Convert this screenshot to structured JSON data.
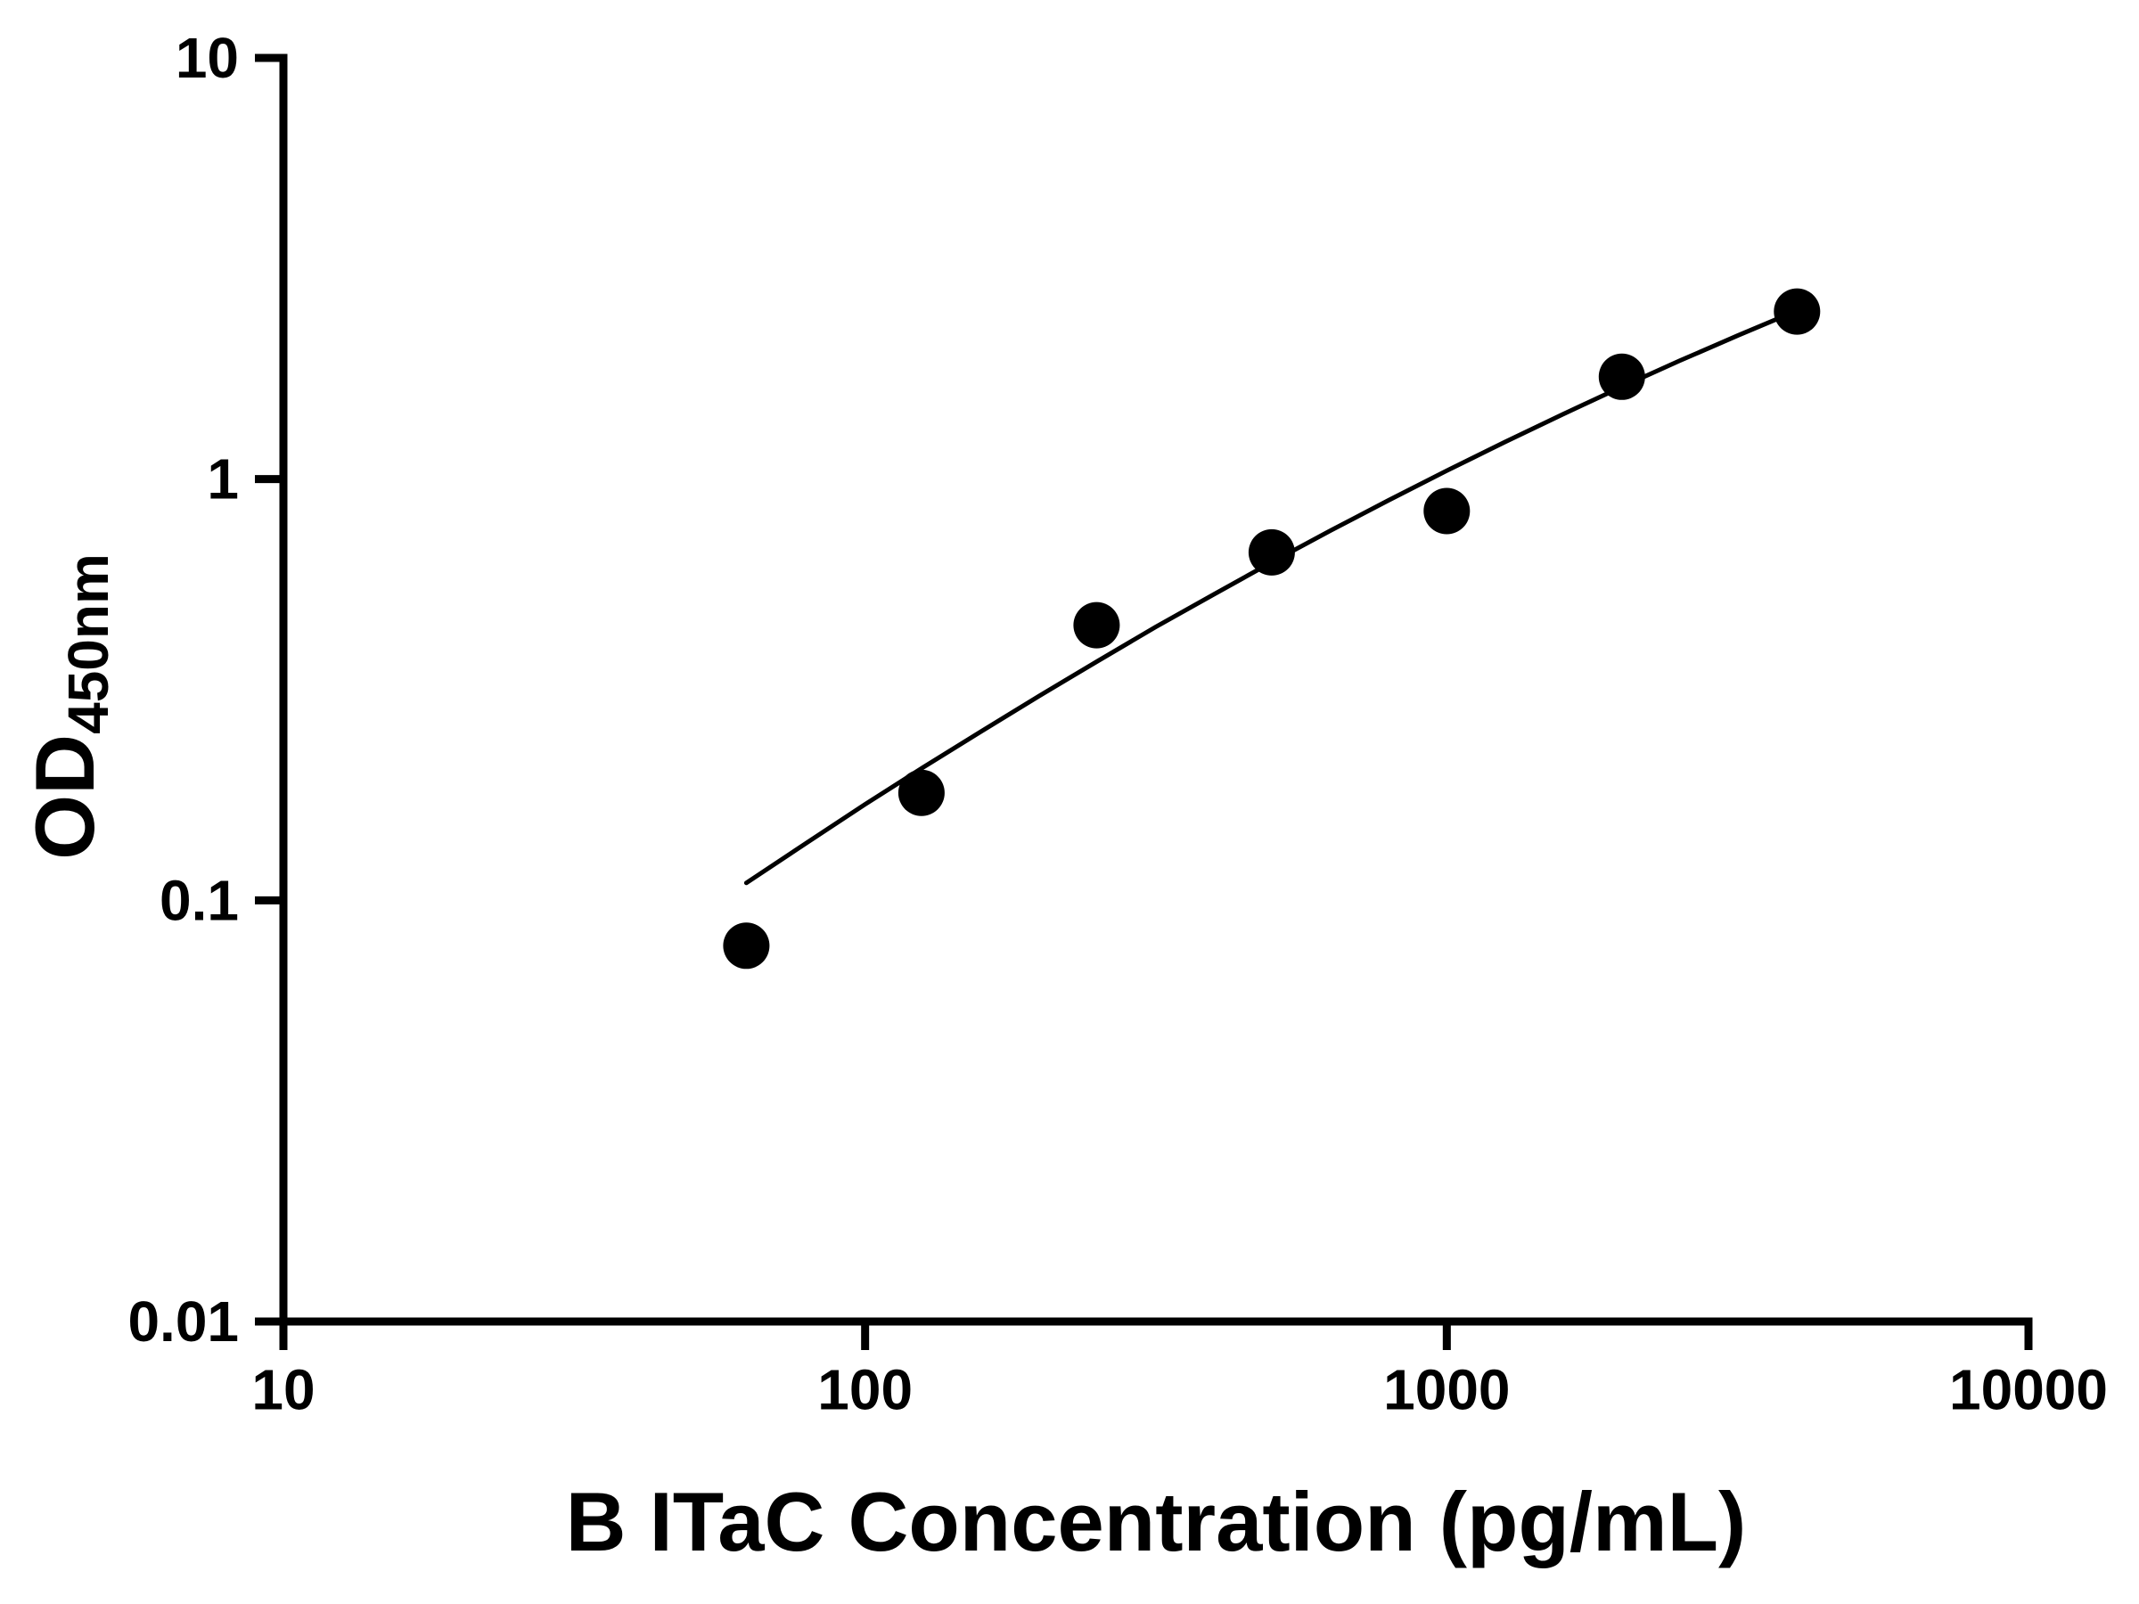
{
  "chart_data": {
    "type": "scatter",
    "title": "",
    "xlabel": "B ITaC Concentration (pg/mL)",
    "ylabel": "OD450nm",
    "ylabel_main": "OD",
    "ylabel_sub": "450nm",
    "x_scale": "log",
    "y_scale": "log",
    "xlim": [
      10,
      10000
    ],
    "ylim": [
      0.01,
      10
    ],
    "grid": false,
    "legend": false,
    "x_ticks": [
      {
        "value": 10,
        "label": "10"
      },
      {
        "value": 100,
        "label": "100"
      },
      {
        "value": 1000,
        "label": "1000"
      },
      {
        "value": 10000,
        "label": "10000"
      }
    ],
    "y_ticks": [
      {
        "value": 10,
        "label": "10"
      },
      {
        "value": 1,
        "label": "1"
      },
      {
        "value": 0.1,
        "label": "0.1"
      },
      {
        "value": 0.01,
        "label": "0.01"
      }
    ],
    "series": [
      {
        "name": "standard-points",
        "type": "scatter",
        "points": [
          [
            62.5,
            0.078
          ],
          [
            125,
            0.18
          ],
          [
            250,
            0.45
          ],
          [
            500,
            0.67
          ],
          [
            1000,
            0.84
          ],
          [
            2000,
            1.75
          ],
          [
            4000,
            2.5
          ]
        ]
      },
      {
        "name": "fit-curve",
        "type": "line",
        "points": [
          [
            62.5,
            0.11
          ],
          [
            79.4,
            0.137
          ],
          [
            100,
            0.169
          ],
          [
            125.9,
            0.207
          ],
          [
            158.5,
            0.252
          ],
          [
            199.5,
            0.306
          ],
          [
            251.2,
            0.37
          ],
          [
            316.2,
            0.446
          ],
          [
            398.1,
            0.533
          ],
          [
            501.2,
            0.636
          ],
          [
            631.0,
            0.755
          ],
          [
            794.3,
            0.891
          ],
          [
            1000,
            1.047
          ],
          [
            1258.9,
            1.225
          ],
          [
            1584.9,
            1.427
          ],
          [
            1995.3,
            1.654
          ],
          [
            2511.9,
            1.909
          ],
          [
            3162.3,
            2.192
          ],
          [
            4000,
            2.512
          ]
        ]
      }
    ],
    "colors": {
      "points": "#000000",
      "curve": "#000000",
      "axis": "#000000",
      "background": "#ffffff"
    }
  }
}
